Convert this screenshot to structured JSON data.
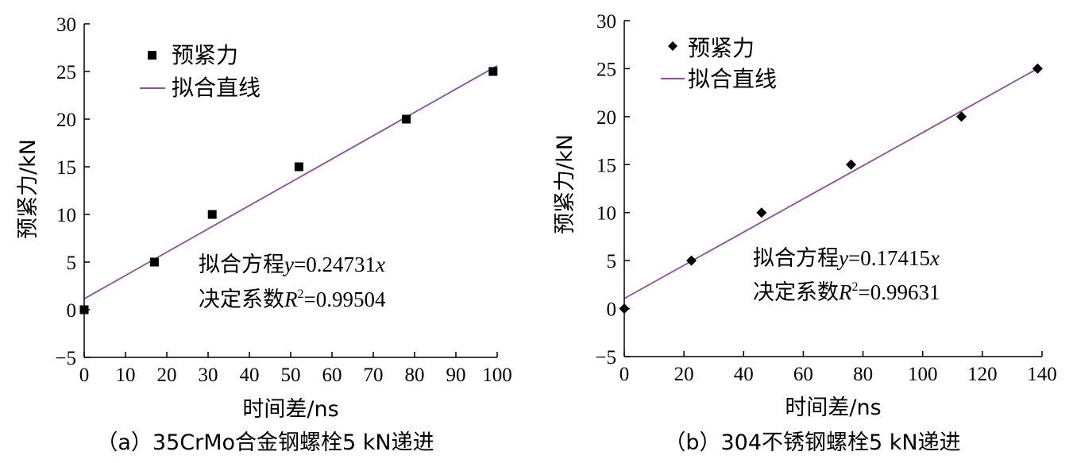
{
  "chart_data": [
    {
      "type": "scatter",
      "xlabel": "时间差/ns",
      "ylabel": "预紧力/kN",
      "xlim": [
        0,
        100
      ],
      "ylim": [
        -5,
        30
      ],
      "xticks": [
        "0",
        "10",
        "20",
        "30",
        "40",
        "50",
        "60",
        "70",
        "80",
        "90",
        "100"
      ],
      "yticks": [
        "−5",
        "0",
        "5",
        "10",
        "15",
        "20",
        "25",
        "30"
      ],
      "grid": false,
      "legend_position": "top-left",
      "series": [
        {
          "name": "预紧力",
          "marker": "square",
          "color": "#000000",
          "x": [
            0,
            17,
            31,
            52,
            78,
            99
          ],
          "y": [
            0,
            5,
            10,
            15,
            20,
            25
          ]
        },
        {
          "name": "拟合直线",
          "kind": "line",
          "color": "#8a4f9e",
          "x": [
            0,
            100
          ],
          "y": [
            1.15,
            25.6
          ]
        }
      ],
      "annotation": {
        "eq_prefix": "拟合方程",
        "eq_var": "y",
        "eq_mid": "=0.24731",
        "eq_x": "x",
        "r_prefix": "决定系数",
        "r_var": "R",
        "r_sup": "2",
        "r_val": "=0.99504"
      },
      "caption": "（a）35CrMo合金钢螺栓5 kN递进"
    },
    {
      "type": "scatter",
      "xlabel": "时间差/ns",
      "ylabel": "预紧力/kN",
      "xlim": [
        0,
        140
      ],
      "ylim": [
        -5,
        30
      ],
      "xticks": [
        "0",
        "20",
        "40",
        "60",
        "80",
        "100",
        "120",
        "140"
      ],
      "yticks": [
        "−5",
        "0",
        "5",
        "10",
        "15",
        "20",
        "25",
        "30"
      ],
      "grid": false,
      "legend_position": "top-left",
      "series": [
        {
          "name": "预紧力",
          "marker": "diamond",
          "color": "#000000",
          "x": [
            0,
            22.5,
            46,
            76,
            113,
            138.5
          ],
          "y": [
            0,
            5,
            10,
            15,
            20,
            25
          ]
        },
        {
          "name": "拟合直线",
          "kind": "line",
          "color": "#8a4f9e",
          "x": [
            0,
            138.5
          ],
          "y": [
            1.05,
            25
          ]
        }
      ],
      "annotation": {
        "eq_prefix": "拟合方程",
        "eq_var": "y",
        "eq_mid": "=0.17415",
        "eq_x": "x",
        "r_prefix": "决定系数",
        "r_var": "R",
        "r_sup": "2",
        "r_val": "=0.99631"
      },
      "caption": "（b）304不锈钢螺栓5 kN递进"
    }
  ]
}
